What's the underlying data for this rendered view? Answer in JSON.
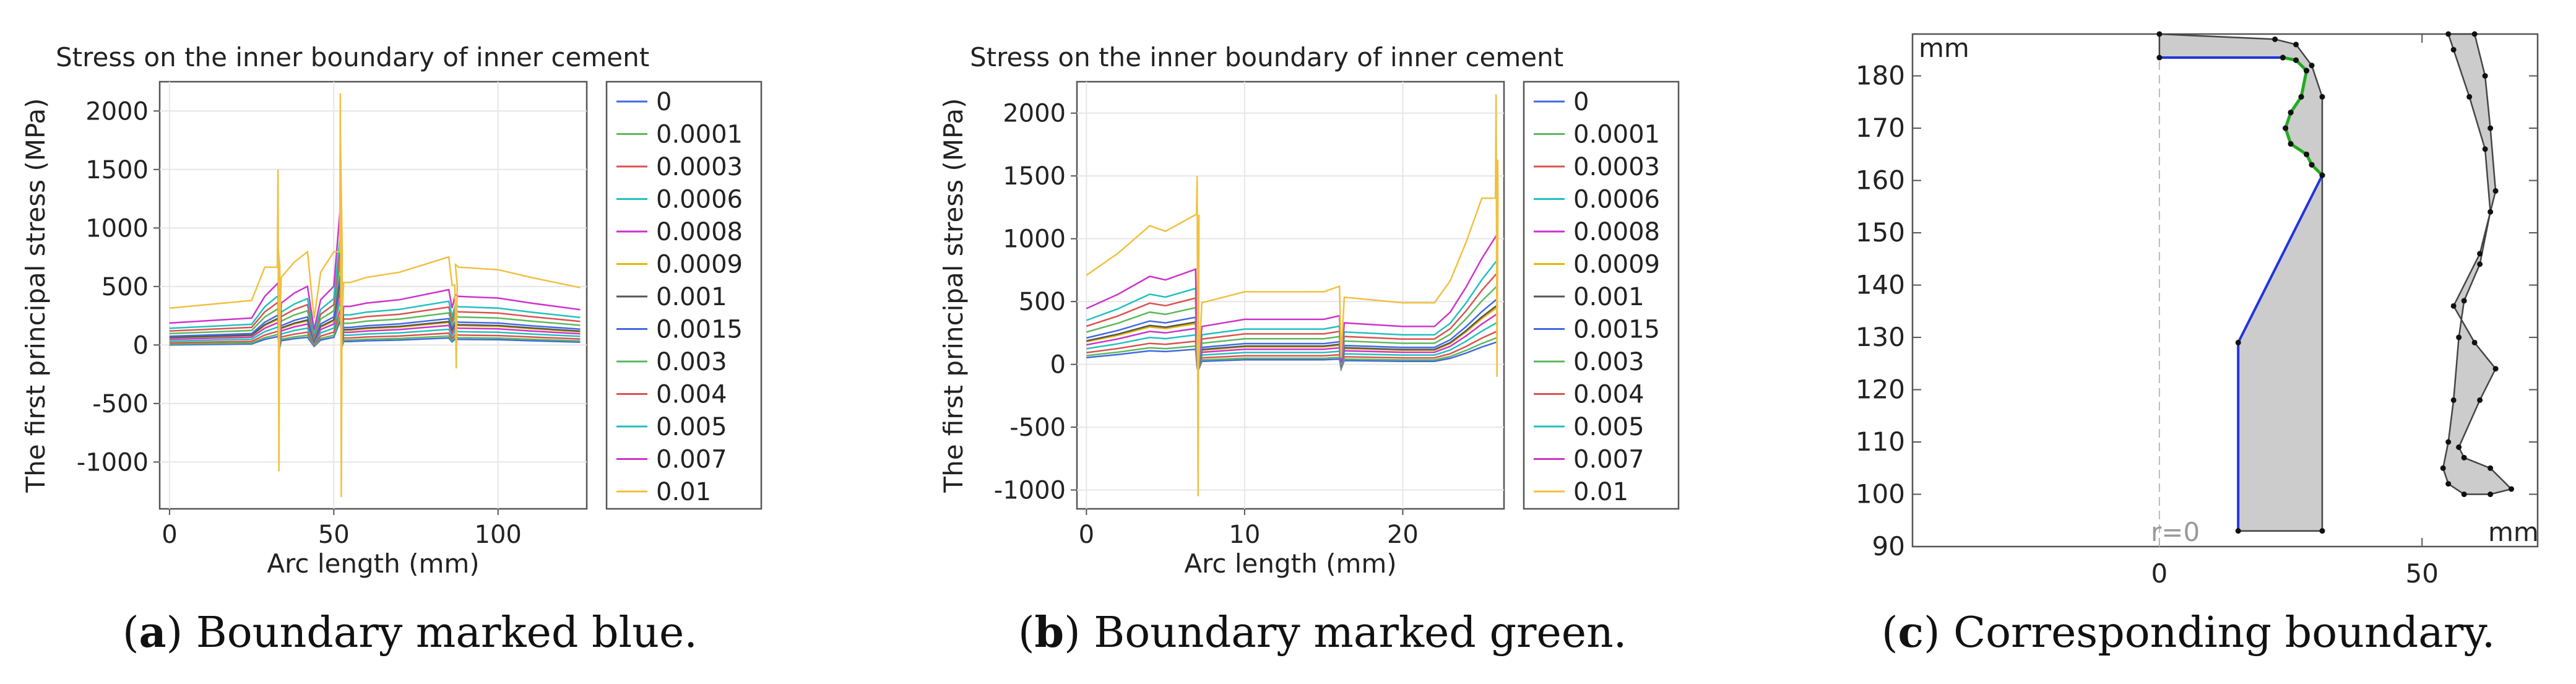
{
  "colors": [
    "#4169e1",
    "#5cb85c",
    "#d9534f",
    "#20c0c0",
    "#cc33cc",
    "#e6b800",
    "#555555",
    "#4169e1",
    "#5cb85c",
    "#d9534f",
    "#20c0c0",
    "#cc33cc",
    "#f0c040"
  ],
  "legend_entries": [
    "0",
    "0.0001",
    "0.0003",
    "0.0006",
    "0.0008",
    "0.0009",
    "0.001",
    "0.0015",
    "0.003",
    "0.004",
    "0.005",
    "0.007",
    "0.01"
  ],
  "chart_data": [
    {
      "type": "line",
      "title": "Stress on the inner boundary of inner cement",
      "xlabel": "Arc length (mm)",
      "ylabel": "The first principal stress (MPa)",
      "xlim": [
        -3,
        127
      ],
      "ylim": [
        -1400,
        2250
      ],
      "xticks": [
        "0",
        "50",
        "100"
      ],
      "yticks": [
        "2000",
        "1500",
        "1000",
        "500",
        "0",
        "-500",
        "-1000"
      ],
      "shape_x": [
        0,
        25,
        29,
        33,
        33.5,
        34,
        38,
        42,
        44,
        46,
        50,
        52,
        52.5,
        53,
        55,
        60,
        70,
        85,
        86,
        87,
        88,
        100,
        110,
        125
      ],
      "shape_y": [
        0,
        15,
        80,
        120,
        -50,
        60,
        90,
        110,
        -20,
        70,
        110,
        350,
        -20,
        50,
        50,
        60,
        70,
        100,
        45,
        85,
        80,
        75,
        60,
        40
      ],
      "series_scale": [
        0,
        0.1,
        0.25,
        0.45,
        0.65,
        0.8,
        0.85,
        1.0,
        1.3,
        1.6,
        1.9,
        2.5,
        4.2
      ],
      "spikes": [
        {
          "x": 33,
          "peak": 1500,
          "trough": -1080
        },
        {
          "x": 52,
          "peak": 2150,
          "trough": -1300
        },
        {
          "x": 87,
          "peak": 300,
          "trough": -200
        }
      ]
    },
    {
      "type": "line",
      "title": "Stress on the inner boundary of inner cement",
      "xlabel": "Arc length (mm)",
      "ylabel": "The first principal stress (MPa)",
      "xlim": [
        -0.6,
        26.4
      ],
      "ylim": [
        -1150,
        2250
      ],
      "xticks": [
        "0",
        "10",
        "20"
      ],
      "yticks": [
        "2000",
        "1500",
        "1000",
        "500",
        "0",
        "-500",
        "-1000"
      ],
      "shape_x": [
        0,
        2,
        4,
        5,
        6.9,
        7,
        7.05,
        7.3,
        10,
        15,
        16,
        16.1,
        16.3,
        20,
        22,
        23,
        24,
        25,
        26
      ],
      "shape_y": [
        90,
        130,
        180,
        170,
        200,
        -40,
        -90,
        40,
        60,
        60,
        70,
        -60,
        50,
        40,
        40,
        80,
        150,
        230,
        300
      ],
      "series_scale": [
        0,
        0.1,
        0.25,
        0.45,
        0.65,
        0.8,
        0.85,
        1.0,
        1.3,
        1.6,
        1.9,
        2.5,
        4.2
      ],
      "spikes": [
        {
          "x": 7,
          "peak": 1500,
          "trough": -1050
        },
        {
          "x": 25.9,
          "peak": 2150,
          "trough": -100
        }
      ]
    },
    {
      "type": "diagram",
      "xlim": [
        -47,
        72
      ],
      "ylim": [
        90,
        188
      ],
      "xticks": [
        "0",
        "50"
      ],
      "yticks": [
        "180",
        "170",
        "160",
        "150",
        "140",
        "130",
        "120",
        "110",
        "100",
        "90"
      ],
      "r_label": "r=0",
      "unit_top": "mm",
      "unit_bottom": "mm",
      "boundary_blue": [
        [
          0,
          183.5
        ],
        [
          23,
          183.5
        ]
      ],
      "boundary_blue_lower": [
        [
          31,
          161
        ],
        [
          15,
          129
        ],
        [
          15,
          93
        ]
      ],
      "boundary_green": [
        [
          23.5,
          183.5
        ],
        [
          26,
          183
        ],
        [
          28,
          181
        ],
        [
          27,
          176
        ],
        [
          25,
          173
        ],
        [
          24,
          170
        ],
        [
          25,
          167
        ],
        [
          28,
          165
        ],
        [
          29,
          163
        ],
        [
          31,
          161
        ]
      ],
      "outline_shape": [
        [
          0,
          188
        ],
        [
          22,
          187
        ],
        [
          26,
          186
        ],
        [
          29,
          182
        ],
        [
          31,
          176
        ],
        [
          31,
          93
        ],
        [
          15,
          93
        ],
        [
          15,
          129
        ],
        [
          31,
          161
        ],
        [
          29,
          163
        ],
        [
          28,
          165
        ],
        [
          25,
          167
        ],
        [
          24,
          170
        ],
        [
          25,
          173
        ],
        [
          27,
          176
        ],
        [
          28,
          181
        ],
        [
          26,
          183
        ],
        [
          23.5,
          183.5
        ],
        [
          0,
          183.5
        ]
      ],
      "outer_shape": [
        [
          55,
          188
        ],
        [
          60,
          188
        ],
        [
          62,
          180
        ],
        [
          63,
          170
        ],
        [
          64,
          158
        ],
        [
          61,
          146
        ],
        [
          56,
          136
        ],
        [
          60,
          129
        ],
        [
          64,
          124
        ],
        [
          61,
          118
        ],
        [
          57,
          109
        ],
        [
          58,
          107
        ],
        [
          63,
          105
        ],
        [
          67,
          101
        ],
        [
          63,
          100
        ],
        [
          58,
          100
        ],
        [
          55,
          102
        ],
        [
          54,
          105
        ],
        [
          55,
          110
        ],
        [
          56,
          118
        ],
        [
          57,
          130
        ],
        [
          58,
          137
        ],
        [
          61,
          144
        ],
        [
          63,
          154
        ],
        [
          62,
          166
        ],
        [
          59,
          176
        ],
        [
          56,
          185
        ]
      ]
    }
  ],
  "captions": [
    {
      "label": "a",
      "text": " Boundary marked blue."
    },
    {
      "label": "b",
      "text": " Boundary marked green."
    },
    {
      "label": "c",
      "text": " Corresponding boundary."
    }
  ]
}
